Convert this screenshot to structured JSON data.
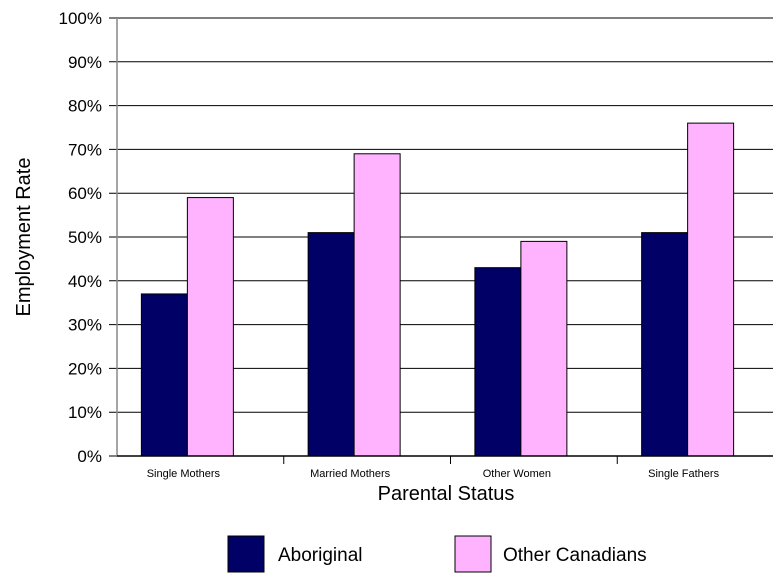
{
  "chart_data": {
    "type": "bar",
    "categories": [
      "Single Mothers",
      "Married Mothers",
      "Other Women",
      "Single Fathers"
    ],
    "series": [
      {
        "name": "Aboriginal",
        "values": [
          37,
          51,
          43,
          51
        ],
        "color": "#000066"
      },
      {
        "name": "Other Canadians",
        "values": [
          59,
          69,
          49,
          76
        ],
        "color": "#ffb3ff"
      }
    ],
    "xlabel": "Parental Status",
    "ylabel": "Employment Rate",
    "ylim": [
      0,
      100
    ],
    "yticks": [
      "0%",
      "10%",
      "20%",
      "30%",
      "40%",
      "50%",
      "60%",
      "70%",
      "80%",
      "90%",
      "100%"
    ],
    "grid": true,
    "legend": "bottom",
    "colors": {
      "grid": "#000000",
      "bar_stroke": "#000000",
      "plot_border": "#888888"
    }
  }
}
